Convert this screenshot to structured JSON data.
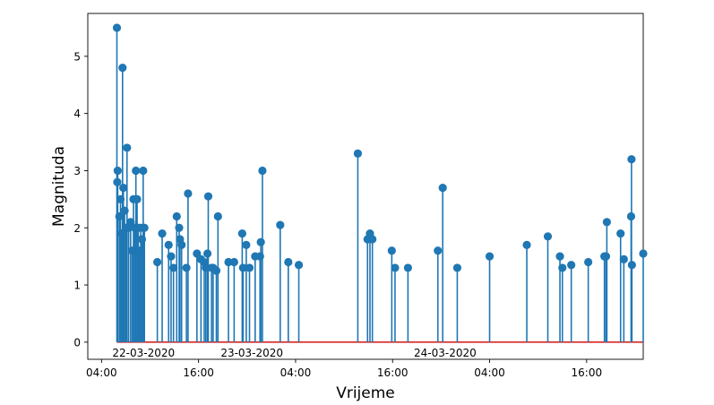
{
  "chart_data": {
    "type": "stem",
    "xlabel": "Vrijeme",
    "ylabel": "Magnituda",
    "x_unit": "hours since 2020-03-22 00:00",
    "xlim": [
      2.3,
      71.0
    ],
    "ylim": [
      -0.3,
      5.75
    ],
    "x_ticks": [
      {
        "value": 4,
        "label": "04:00"
      },
      {
        "value": 16,
        "label": "16:00"
      },
      {
        "value": 28,
        "label": "04:00"
      },
      {
        "value": 40,
        "label": "16:00"
      },
      {
        "value": 52,
        "label": "04:00"
      },
      {
        "value": 64,
        "label": "16:00"
      }
    ],
    "y_ticks": [
      0,
      1,
      2,
      3,
      4,
      5
    ],
    "date_annotations": [
      {
        "value": 9.2,
        "label": "22-03-2020"
      },
      {
        "value": 22.6,
        "label": "23-03-2020"
      },
      {
        "value": 46.5,
        "label": "24-03-2020"
      }
    ],
    "colors": {
      "stem": "#1f77b4",
      "baseline": "#d62728"
    },
    "points": [
      {
        "x": 5.9,
        "y": 5.5
      },
      {
        "x": 5.95,
        "y": 2.8
      },
      {
        "x": 6.0,
        "y": 3.0
      },
      {
        "x": 6.2,
        "y": 2.2
      },
      {
        "x": 6.35,
        "y": 2.5
      },
      {
        "x": 6.5,
        "y": 1.9
      },
      {
        "x": 6.6,
        "y": 4.8
      },
      {
        "x": 6.7,
        "y": 2.7
      },
      {
        "x": 6.85,
        "y": 2.3
      },
      {
        "x": 7.0,
        "y": 2.0
      },
      {
        "x": 7.15,
        "y": 3.4
      },
      {
        "x": 7.35,
        "y": 2.0
      },
      {
        "x": 7.6,
        "y": 2.1
      },
      {
        "x": 7.8,
        "y": 1.6
      },
      {
        "x": 7.95,
        "y": 2.5
      },
      {
        "x": 8.1,
        "y": 2.0
      },
      {
        "x": 8.25,
        "y": 3.0
      },
      {
        "x": 8.4,
        "y": 2.5
      },
      {
        "x": 8.55,
        "y": 2.0
      },
      {
        "x": 8.7,
        "y": 1.6
      },
      {
        "x": 8.85,
        "y": 2.0
      },
      {
        "x": 9.0,
        "y": 1.8
      },
      {
        "x": 9.15,
        "y": 3.0
      },
      {
        "x": 9.3,
        "y": 2.0
      },
      {
        "x": 10.9,
        "y": 1.4
      },
      {
        "x": 11.5,
        "y": 1.9
      },
      {
        "x": 12.3,
        "y": 1.7
      },
      {
        "x": 12.6,
        "y": 1.5
      },
      {
        "x": 12.9,
        "y": 1.3
      },
      {
        "x": 13.3,
        "y": 2.2
      },
      {
        "x": 13.6,
        "y": 2.0
      },
      {
        "x": 13.7,
        "y": 1.8
      },
      {
        "x": 13.9,
        "y": 1.7
      },
      {
        "x": 14.5,
        "y": 1.3
      },
      {
        "x": 14.7,
        "y": 2.6
      },
      {
        "x": 15.8,
        "y": 1.55
      },
      {
        "x": 16.3,
        "y": 1.45
      },
      {
        "x": 16.7,
        "y": 1.4
      },
      {
        "x": 16.9,
        "y": 1.3
      },
      {
        "x": 17.1,
        "y": 1.55
      },
      {
        "x": 17.2,
        "y": 2.55
      },
      {
        "x": 17.6,
        "y": 1.3
      },
      {
        "x": 17.8,
        "y": 1.3
      },
      {
        "x": 18.2,
        "y": 1.25
      },
      {
        "x": 18.4,
        "y": 2.2
      },
      {
        "x": 19.7,
        "y": 1.4
      },
      {
        "x": 20.4,
        "y": 1.4
      },
      {
        "x": 21.4,
        "y": 1.9
      },
      {
        "x": 21.5,
        "y": 1.3
      },
      {
        "x": 21.9,
        "y": 1.7
      },
      {
        "x": 22.3,
        "y": 1.3
      },
      {
        "x": 23.0,
        "y": 1.5
      },
      {
        "x": 23.6,
        "y": 1.5
      },
      {
        "x": 23.7,
        "y": 1.75
      },
      {
        "x": 23.9,
        "y": 3.0
      },
      {
        "x": 26.1,
        "y": 2.05
      },
      {
        "x": 27.1,
        "y": 1.4
      },
      {
        "x": 28.4,
        "y": 1.35
      },
      {
        "x": 35.7,
        "y": 3.3
      },
      {
        "x": 36.9,
        "y": 1.8
      },
      {
        "x": 37.2,
        "y": 1.9
      },
      {
        "x": 37.5,
        "y": 1.8
      },
      {
        "x": 39.9,
        "y": 1.6
      },
      {
        "x": 40.3,
        "y": 1.3
      },
      {
        "x": 41.9,
        "y": 1.3
      },
      {
        "x": 45.6,
        "y": 1.6
      },
      {
        "x": 46.2,
        "y": 2.7
      },
      {
        "x": 48.0,
        "y": 1.3
      },
      {
        "x": 52.0,
        "y": 1.5
      },
      {
        "x": 56.6,
        "y": 1.7
      },
      {
        "x": 59.2,
        "y": 1.85
      },
      {
        "x": 60.7,
        "y": 1.5
      },
      {
        "x": 61.0,
        "y": 1.3
      },
      {
        "x": 62.1,
        "y": 1.35
      },
      {
        "x": 64.2,
        "y": 1.4
      },
      {
        "x": 66.2,
        "y": 1.5
      },
      {
        "x": 66.4,
        "y": 1.5
      },
      {
        "x": 66.5,
        "y": 2.1
      },
      {
        "x": 68.2,
        "y": 1.9
      },
      {
        "x": 68.6,
        "y": 1.45
      },
      {
        "x": 69.5,
        "y": 2.2
      },
      {
        "x": 69.55,
        "y": 3.2
      },
      {
        "x": 69.6,
        "y": 1.35
      },
      {
        "x": 71.0,
        "y": 1.55
      }
    ]
  }
}
